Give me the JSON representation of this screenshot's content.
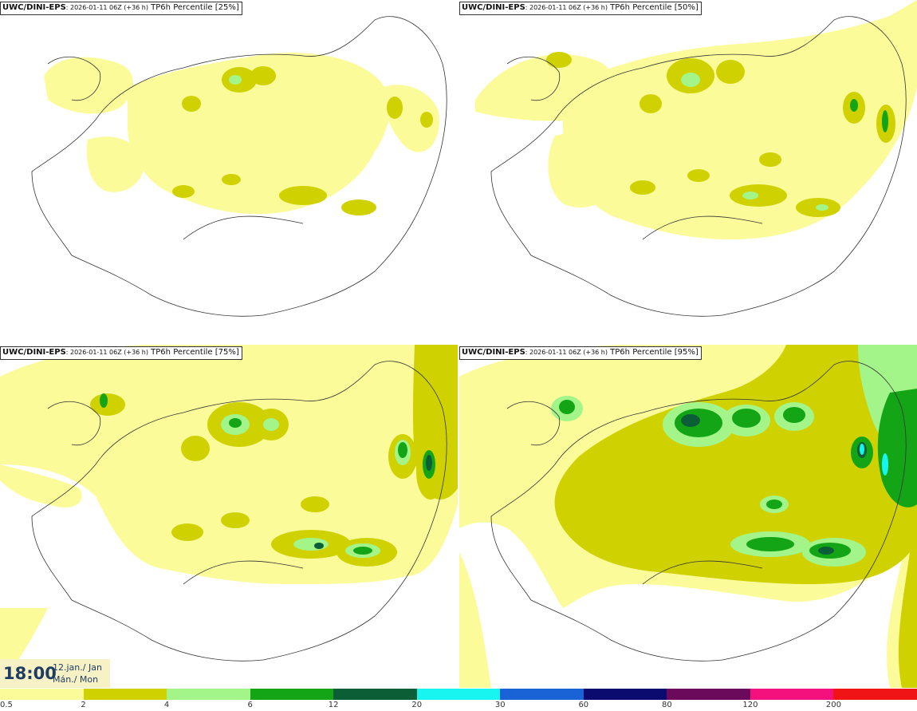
{
  "panels": [
    {
      "source": "UWC/DINI-EPS",
      "run": ": 2026-01-11 06Z (+36 h)",
      "product": "TP6h Percentile [25%]"
    },
    {
      "source": "UWC/DINI-EPS",
      "run": ": 2026-01-11 06Z (+36 h)",
      "product": "TP6h Percentile [50%]"
    },
    {
      "source": "UWC/DINI-EPS",
      "run": ": 2026-01-11 06Z (+36 h)",
      "product": "TP6h Percentile [75%]"
    },
    {
      "source": "UWC/DINI-EPS",
      "run": ": 2026-01-11 06Z (+36 h)",
      "product": "TP6h Percentile [95%]"
    }
  ],
  "valid_time": {
    "time": "18:00",
    "date_line1": "12.jan./ Jan",
    "date_line2": "Mán./ Mon"
  },
  "legend": {
    "ticks": [
      "0.5",
      "2",
      "4",
      "6",
      "12",
      "20",
      "30",
      "60",
      "80",
      "120",
      "200"
    ],
    "colors": [
      "#fbfb9a",
      "#cfd200",
      "#a3f58a",
      "#14a517",
      "#0b5e35",
      "#18f5f0",
      "#1a63d6",
      "#0b0a6e",
      "#6b0a5a",
      "#f4117e",
      "#f01416"
    ]
  }
}
